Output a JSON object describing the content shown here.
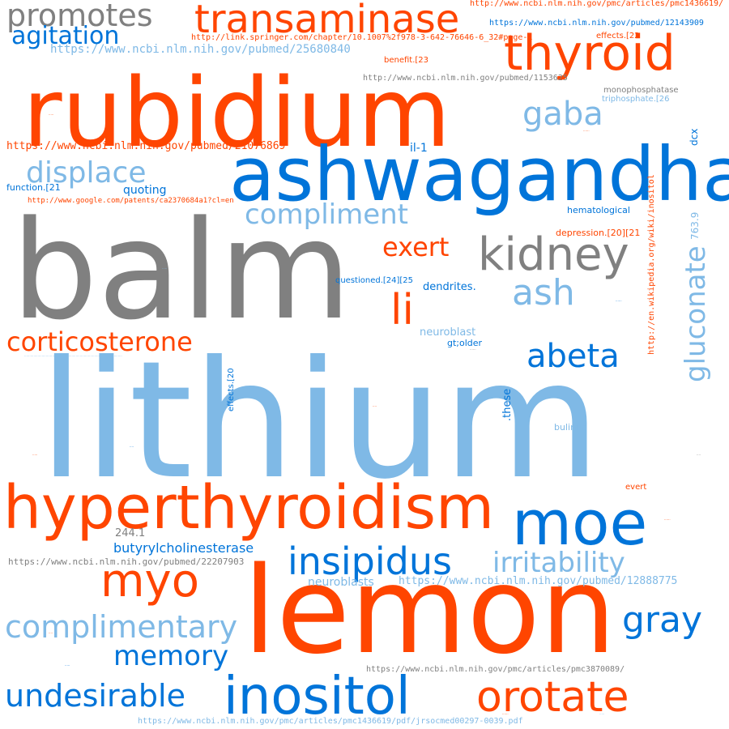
{
  "colors": {
    "orange": "#ff4500",
    "blue": "#0074d9",
    "light_blue": "#7fb9e6",
    "gray": "#808080",
    "background": "#ffffff"
  },
  "words": {
    "lithium": "lithium",
    "lemon": "lemon",
    "balm": "balm",
    "rubidium": "rubidium",
    "ashwagandha": "ashwagandha",
    "hyperthyroidism": "hyperthyroidism",
    "moe": "moe",
    "insipidus": "insipidus",
    "inositol": "inositol",
    "orotate": "orotate",
    "kidney": "kidney",
    "myo": "myo",
    "thyroid": "thyroid",
    "transaminase": "transaminase",
    "promotes": "promotes",
    "agitation": "agitation",
    "gluconate": "gluconate",
    "abeta": "abeta",
    "corticosterone": "corticosterone",
    "li": "li",
    "ash": "ash",
    "exert": "exert",
    "compliment": "compliment",
    "displace": "displace",
    "gaba": "gaba",
    "complimentary": "complimentary",
    "memory": "memory",
    "undesirable": "undesirable",
    "gray": "gray",
    "irritability": "irritability",
    "butyrylcholinesterase": "butyrylcholinesterase",
    "quoting": "quoting",
    "function21": "function.[21",
    "il1": "il-1",
    "dcx": "dcx",
    "hematological": "hematological",
    "depression": "depression.[20][21",
    "questioned": "questioned.[24][25",
    "dendrites": "dendrites.",
    "neuroblast": "neuroblast",
    "neuroblasts": "neuroblasts",
    "gtolder": "gt;older",
    "these": ".these",
    "effects20": "effects.[20",
    "bulimia": "bulimia",
    "evert": "evert",
    "val_244": "244.1",
    "val_763": "763.9",
    "monophosphatase": "monophosphatase",
    "triphosphate": "triphosphate.[26",
    "effects22": "effects.[22",
    "benefit23": "benefit.[23",
    "url_pubmed_25680840": "https://www.ncbi.nlm.nih.gov/pubmed/25680840",
    "url_pubmed_21076869": "https://www.ncbi.nlm.nih.gov/pubmed/21076869",
    "url_pubmed_12143909": "https://www.ncbi.nlm.nih.gov/pubmed/12143909",
    "url_pubmed_1153625": "http://www.ncbi.nlm.nih.gov/pubmed/1153625",
    "url_pubmed_22207903": "https://www.ncbi.nlm.nih.gov/pubmed/22207903",
    "url_pubmed_12888775": "https://www.ncbi.nlm.nih.gov/pubmed/12888775",
    "url_pmc1436619": "http://www.ncbi.nlm.nih.gov/pmc/articles/pmc1436619/",
    "url_pmc3870089": "https://www.ncbi.nlm.nih.gov/pmc/articles/pmc3870089/",
    "url_pmc1436619_pdf": "https://www.ncbi.nlm.nih.gov/pmc/articles/pmc1436619/pdf/jrsocmed00297-0039.pdf",
    "url_springer": "http://link.springer.com/chapter/10.1007%2f978-3-642-76646-6_32#page-1",
    "url_google_patents": "http://www.google.com/patents/ca2370684a1?cl=en",
    "url_wiki_inositol": "http://en.wikipedia.org/wiki/inositol"
  }
}
